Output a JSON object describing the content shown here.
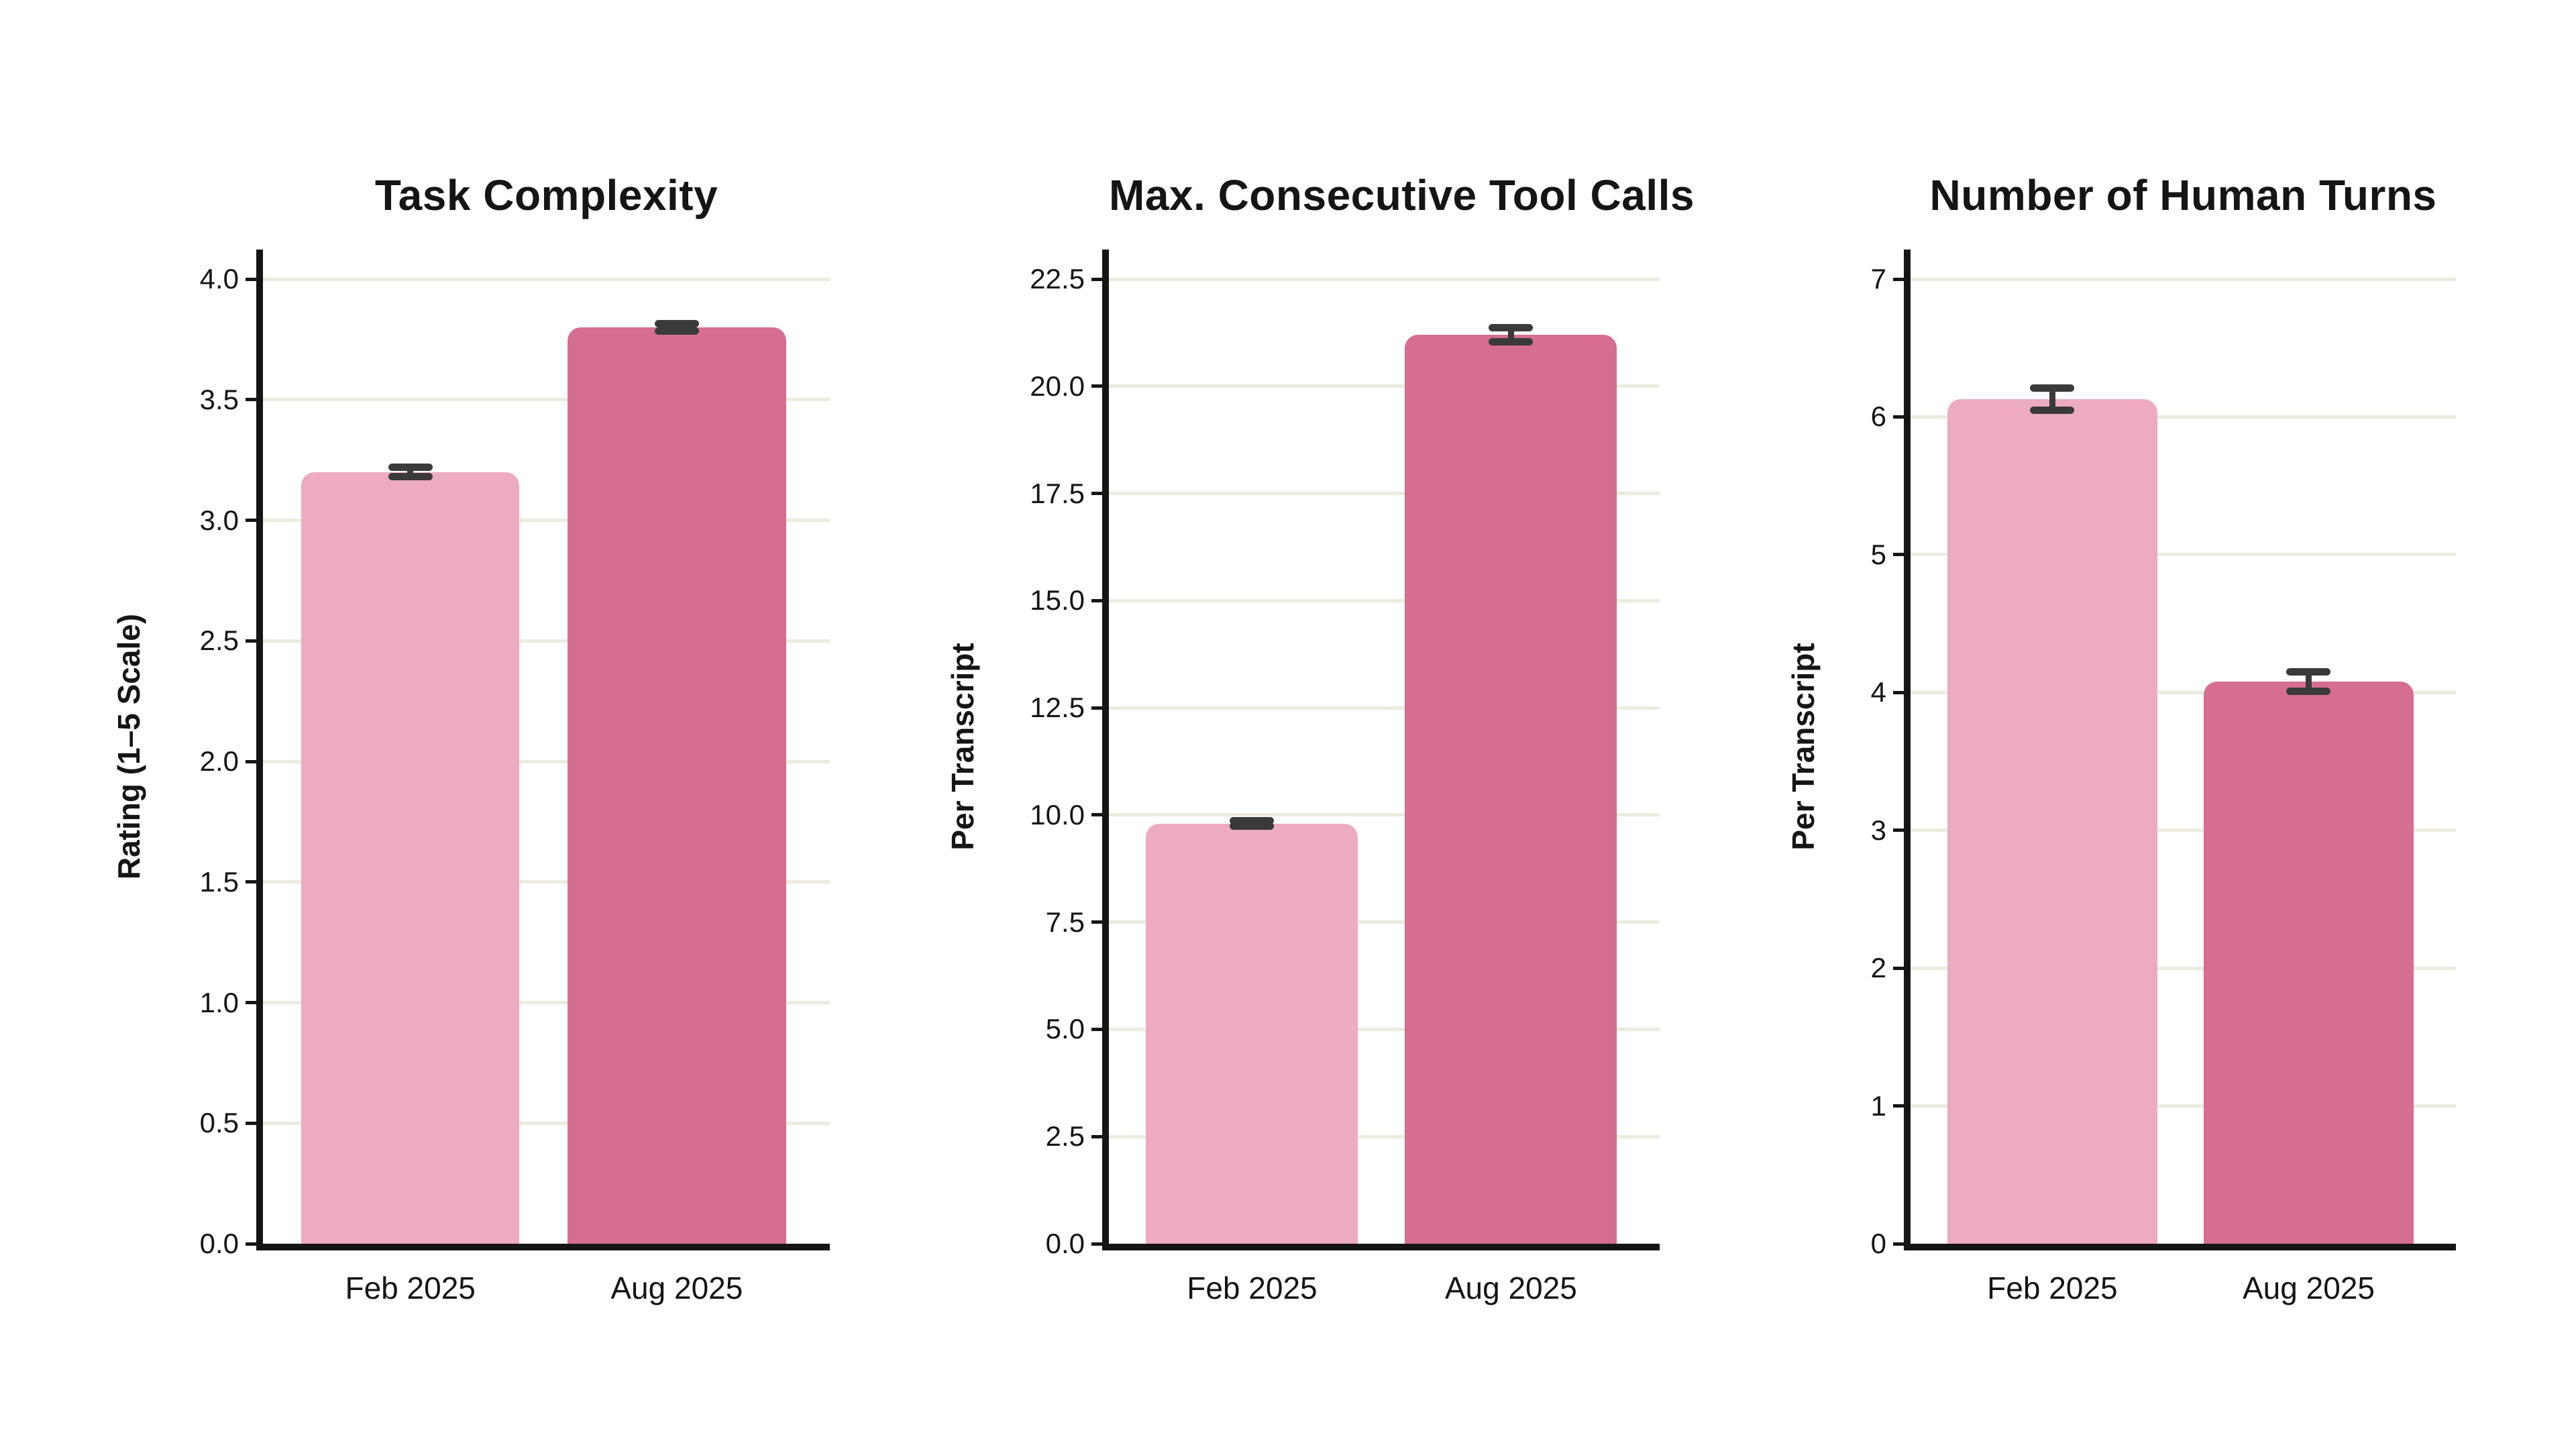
{
  "figure": {
    "background": "#ffffff",
    "description": "Three bar charts comparing Feb 2025 and Aug 2025"
  },
  "style": {
    "grid_color": "#ecebdf",
    "axis_color": "#151515",
    "error_bar_color": "#3a3a3a",
    "text_color": "#151515",
    "bar_colors": [
      "#ecabc1",
      "#d56e92"
    ]
  },
  "chart_data": [
    {
      "type": "bar",
      "title": "Task Complexity",
      "xlabel": "",
      "ylabel": "Rating (1–5 Scale)",
      "categories": [
        "Feb 2025",
        "Aug 2025"
      ],
      "values": [
        3.2,
        3.8
      ],
      "errors": [
        0.02,
        0.015
      ],
      "yticks": [
        0.0,
        0.5,
        1.0,
        1.5,
        2.0,
        2.5,
        3.0,
        3.5,
        4.0
      ],
      "ytick_labels": [
        "0.0",
        "0.5",
        "1.0",
        "1.5",
        "2.0",
        "2.5",
        "3.0",
        "3.5",
        "4.0"
      ],
      "ylim": [
        0,
        4.12
      ],
      "grid": true,
      "legend": false
    },
    {
      "type": "bar",
      "title": "Max. Consecutive Tool Calls",
      "xlabel": "",
      "ylabel": "Per Transcript",
      "categories": [
        "Feb 2025",
        "Aug 2025"
      ],
      "values": [
        9.8,
        21.2
      ],
      "errors": [
        0.06,
        0.16
      ],
      "yticks": [
        0.0,
        2.5,
        5.0,
        7.5,
        10.0,
        12.5,
        15.0,
        17.5,
        20.0,
        22.5
      ],
      "ytick_labels": [
        "0.0",
        "2.5",
        "5.0",
        "7.5",
        "10.0",
        "12.5",
        "15.0",
        "17.5",
        "20.0",
        "22.5"
      ],
      "ylim": [
        0,
        23.2
      ],
      "grid": true,
      "legend": false
    },
    {
      "type": "bar",
      "title": "Number of Human Turns",
      "xlabel": "",
      "ylabel": "Per Transcript",
      "categories": [
        "Feb 2025",
        "Aug 2025"
      ],
      "values": [
        6.13,
        4.08
      ],
      "errors": [
        0.08,
        0.07
      ],
      "yticks": [
        0,
        1,
        2,
        3,
        4,
        5,
        6,
        7
      ],
      "ytick_labels": [
        "0",
        "1",
        "2",
        "3",
        "4",
        "5",
        "6",
        "7"
      ],
      "ylim": [
        0,
        7.21
      ],
      "grid": true,
      "legend": false
    }
  ]
}
